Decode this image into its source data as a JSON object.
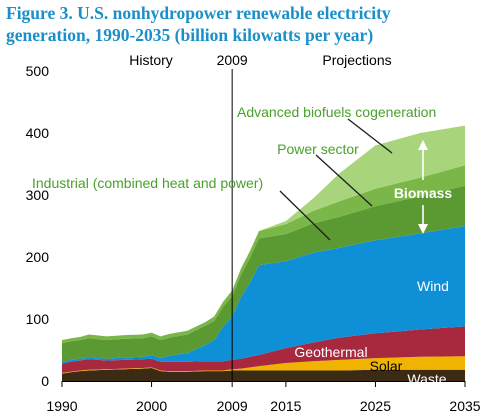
{
  "title_line1": "Figure 3. U.S. nonhydropower renewable electricity",
  "title_line2": "generation, 1990-2035 (billion kilowatts per year)",
  "colors": {
    "title": "#1a8fc9",
    "Waste": "#3b2a14",
    "Solar": "#f0b400",
    "Geothermal": "#a8283e",
    "Wind": "#0f8fd6",
    "Industrial (combined heat and power)": "#5b9a32",
    "Power sector": "#7ab648",
    "Advanced biofuels cogeneration": "#a8d57c",
    "label_green": "#4aa02c"
  },
  "chart_data": {
    "type": "area",
    "stacked": true,
    "x": [
      1990,
      1991,
      1992,
      1993,
      1995,
      1997,
      1999,
      2000,
      2001,
      2002,
      2004,
      2006,
      2007,
      2008,
      2009,
      2010,
      2011,
      2012,
      2015,
      2018,
      2021,
      2025,
      2030,
      2035
    ],
    "ylim": [
      0,
      500
    ],
    "yticks": [
      0,
      100,
      200,
      300,
      400,
      500
    ],
    "xticks": [
      1990,
      2000,
      2009,
      2015,
      2025,
      2035
    ],
    "divider_year": 2009,
    "annotations": {
      "history": "History",
      "divider": "2009",
      "projections": "Projections",
      "biomass": "Biomass"
    },
    "series": [
      {
        "name": "Waste",
        "values": [
          12,
          14,
          16,
          17,
          18,
          19,
          20,
          21,
          16,
          15,
          15,
          16,
          16,
          16,
          17,
          17,
          17,
          17,
          17,
          17,
          17,
          18,
          18,
          18
        ]
      },
      {
        "name": "Solar",
        "values": [
          1,
          1,
          1,
          1,
          1,
          1,
          1,
          1,
          1,
          1,
          1,
          1,
          1,
          1,
          2,
          3,
          5,
          7,
          12,
          15,
          17,
          19,
          21,
          22
        ]
      },
      {
        "name": "Geothermal",
        "values": [
          15,
          16,
          16,
          17,
          14,
          14,
          14,
          14,
          14,
          15,
          15,
          15,
          15,
          15,
          15,
          16,
          17,
          18,
          24,
          30,
          36,
          40,
          44,
          48
        ]
      },
      {
        "name": "Wind",
        "values": [
          3,
          3,
          3,
          3,
          3,
          4,
          4,
          6,
          6,
          10,
          14,
          26,
          34,
          56,
          70,
          100,
          120,
          145,
          140,
          145,
          145,
          150,
          155,
          162
        ]
      },
      {
        "name": "Industrial (combined heat and power)",
        "values": [
          30,
          30,
          30,
          31,
          30,
          30,
          30,
          30,
          29,
          29,
          30,
          31,
          31,
          32,
          33,
          36,
          40,
          43,
          44,
          47,
          50,
          55,
          60,
          65
        ]
      },
      {
        "name": "Power sector",
        "values": [
          5,
          5,
          5,
          6,
          6,
          6,
          6,
          6,
          6,
          6,
          6,
          6,
          7,
          8,
          9,
          10,
          11,
          12,
          16,
          20,
          25,
          28,
          30,
          33
        ]
      },
      {
        "name": "Advanced biofuels cogeneration",
        "values": [
          0,
          0,
          0,
          0,
          0,
          0,
          0,
          0,
          0,
          0,
          0,
          0,
          0,
          0,
          0,
          0,
          0,
          0,
          5,
          20,
          45,
          70,
          72,
          64
        ]
      }
    ]
  }
}
